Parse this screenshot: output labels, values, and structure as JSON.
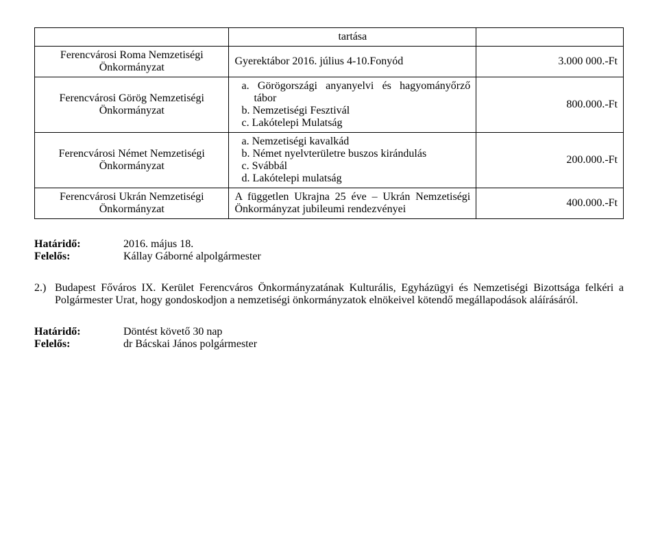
{
  "table": {
    "header_col2": "tartása",
    "rows": [
      {
        "org": "Ferencvárosi Roma Nemzetiségi Önkormányzat",
        "desc_plain": "Gyerektábor 2016. július 4-10.Fonyód",
        "amount": "3.000 000.-Ft"
      },
      {
        "org": "Ferencvárosi Görög Nemzetiségi Önkormányzat",
        "desc_list": [
          "a.  Görögországi anyanyelvi és hagyományőrző tábor",
          "b.  Nemzetiségi Fesztivál",
          "c.  Lakótelepi Mulatság"
        ],
        "amount": "800.000.-Ft"
      },
      {
        "org": "Ferencvárosi Német Nemzetiségi Önkormányzat",
        "desc_list": [
          "a.  Nemzetiségi kavalkád",
          "b.  Német nyelvterületre buszos kirándulás",
          "c.  Svábbál",
          "d.  Lakótelepi mulatság"
        ],
        "amount": "200.000.-Ft"
      },
      {
        "org": "Ferencvárosi Ukrán Nemzetiségi Önkormányzat",
        "desc_plain": "A független Ukrajna 25 éve – Ukrán Nemzetiségi Önkormányzat jubileumi rendezvényei",
        "amount": "400.000.-Ft"
      }
    ]
  },
  "deadline1": {
    "label": "Határidő:",
    "value": "2016. május 18."
  },
  "responsible1": {
    "label": "Felelős:",
    "value": "Kállay Gáborné alpolgármester"
  },
  "paragraph": {
    "num": "2.)",
    "text": "Budapest Főváros IX. Kerület Ferencváros Önkormányzatának Kulturális, Egyházügyi és Nemzetiségi Bizottsága felkéri a Polgármester Urat, hogy gondoskodjon a nemzetiségi önkormányzatok elnökeivel kötendő megállapodások aláírásáról."
  },
  "deadline2": {
    "label": "Határidő:",
    "value": "Döntést követő 30 nap"
  },
  "responsible2": {
    "label": "Felelős:",
    "value": "dr Bácskai János polgármester"
  }
}
